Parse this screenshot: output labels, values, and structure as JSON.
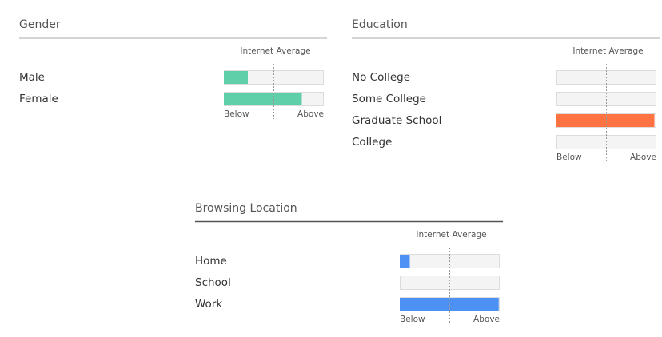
{
  "chart_data": [
    {
      "type": "bar",
      "title": "Gender",
      "categories": [
        "Male",
        "Female"
      ],
      "values": [
        24,
        78
      ],
      "color": "#5ecfa8",
      "xlim": [
        0,
        100
      ],
      "reference": {
        "value": 50,
        "label": "Internet Average"
      },
      "xlabels": [
        "Below",
        "Above"
      ]
    },
    {
      "type": "bar",
      "title": "Education",
      "categories": [
        "No College",
        "Some College",
        "Graduate School",
        "College"
      ],
      "values": [
        0,
        0,
        98,
        0
      ],
      "color": "#ff7342",
      "xlim": [
        0,
        100
      ],
      "reference": {
        "value": 50,
        "label": "Internet Average"
      },
      "xlabels": [
        "Below",
        "Above"
      ]
    },
    {
      "type": "bar",
      "title": "Browsing Location",
      "categories": [
        "Home",
        "School",
        "Work"
      ],
      "values": [
        10,
        0,
        99
      ],
      "color": "#4e91f5",
      "xlim": [
        0,
        100
      ],
      "reference": {
        "value": 50,
        "label": "Internet Average"
      },
      "xlabels": [
        "Below",
        "Above"
      ]
    }
  ]
}
